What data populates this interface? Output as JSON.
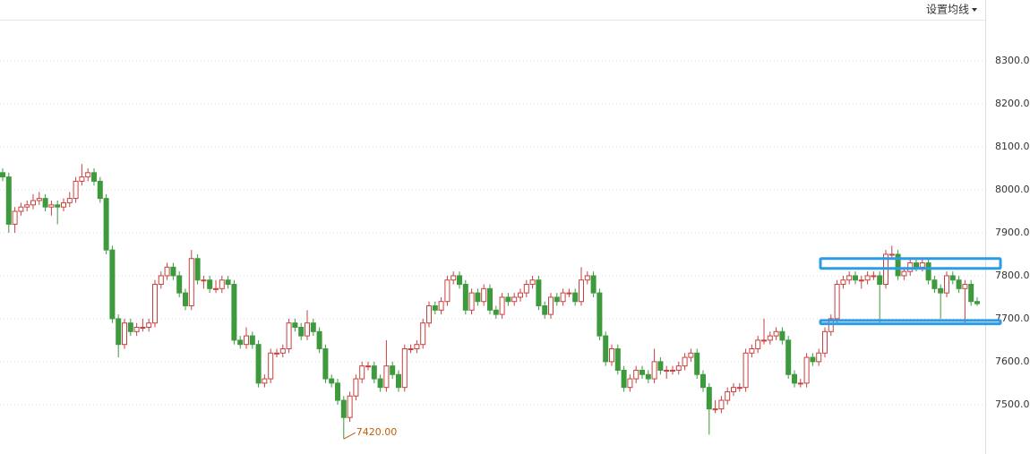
{
  "header_button": "设置均线",
  "chart_data": {
    "type": "candlestick",
    "ylim": [
      7385,
      8442
    ],
    "yticks": [
      {
        "value": 7500,
        "label": "7500.00"
      },
      {
        "value": 7600,
        "label": "7600.00"
      },
      {
        "value": 7700,
        "label": "7700.00"
      },
      {
        "value": 7800,
        "label": "7800.00"
      },
      {
        "value": 7900,
        "label": "7900.00"
      },
      {
        "value": 8000,
        "label": "8000.00"
      },
      {
        "value": 8100,
        "label": "8100.00"
      },
      {
        "value": 8200,
        "label": "8200.00"
      },
      {
        "value": 8300,
        "label": "8300.00"
      }
    ],
    "grid": true,
    "up_color": "#c9413f",
    "down_color": "#3d9a3d",
    "min_label": {
      "value": 7420,
      "label": "7420.00"
    },
    "zones": [
      {
        "low": 7817,
        "high": 7840
      },
      {
        "low": 7688,
        "high": 7696
      }
    ],
    "zone_color": "#2e9be6",
    "candles": [
      [
        8040,
        8050,
        8020,
        8030
      ],
      [
        8030,
        8040,
        7900,
        7920
      ],
      [
        7920,
        7960,
        7900,
        7950
      ],
      [
        7950,
        7970,
        7940,
        7960
      ],
      [
        7960,
        7975,
        7950,
        7965
      ],
      [
        7965,
        7990,
        7955,
        7975
      ],
      [
        7975,
        7995,
        7965,
        7980
      ],
      [
        7980,
        7990,
        7950,
        7960
      ],
      [
        7960,
        7975,
        7940,
        7965
      ],
      [
        7965,
        7975,
        7920,
        7960
      ],
      [
        7960,
        7980,
        7950,
        7970
      ],
      [
        7970,
        7995,
        7960,
        7980
      ],
      [
        7980,
        8030,
        7970,
        8020
      ],
      [
        8020,
        8060,
        8010,
        8030
      ],
      [
        8030,
        8050,
        8020,
        8040
      ],
      [
        8040,
        8050,
        8010,
        8020
      ],
      [
        8020,
        8030,
        7970,
        7980
      ],
      [
        7980,
        7990,
        7850,
        7860
      ],
      [
        7860,
        7870,
        7690,
        7700
      ],
      [
        7700,
        7710,
        7610,
        7640
      ],
      [
        7640,
        7700,
        7630,
        7690
      ],
      [
        7690,
        7700,
        7660,
        7670
      ],
      [
        7670,
        7690,
        7660,
        7680
      ],
      [
        7680,
        7700,
        7670,
        7680
      ],
      [
        7680,
        7700,
        7670,
        7690
      ],
      [
        7690,
        7790,
        7680,
        7780
      ],
      [
        7780,
        7810,
        7770,
        7800
      ],
      [
        7800,
        7830,
        7790,
        7820
      ],
      [
        7820,
        7830,
        7790,
        7800
      ],
      [
        7800,
        7810,
        7750,
        7760
      ],
      [
        7760,
        7770,
        7720,
        7730
      ],
      [
        7730,
        7860,
        7720,
        7840
      ],
      [
        7840,
        7850,
        7780,
        7790
      ],
      [
        7790,
        7800,
        7770,
        7790
      ],
      [
        7790,
        7800,
        7760,
        7770
      ],
      [
        7770,
        7790,
        7760,
        7770
      ],
      [
        7770,
        7800,
        7760,
        7790
      ],
      [
        7790,
        7800,
        7770,
        7780
      ],
      [
        7780,
        7790,
        7640,
        7650
      ],
      [
        7650,
        7660,
        7630,
        7640
      ],
      [
        7640,
        7680,
        7630,
        7660
      ],
      [
        7660,
        7670,
        7630,
        7640
      ],
      [
        7640,
        7650,
        7540,
        7550
      ],
      [
        7550,
        7570,
        7540,
        7560
      ],
      [
        7560,
        7630,
        7550,
        7620
      ],
      [
        7620,
        7630,
        7610,
        7620
      ],
      [
        7620,
        7640,
        7610,
        7630
      ],
      [
        7630,
        7700,
        7620,
        7690
      ],
      [
        7690,
        7700,
        7670,
        7680
      ],
      [
        7680,
        7690,
        7650,
        7660
      ],
      [
        7660,
        7720,
        7650,
        7690
      ],
      [
        7690,
        7700,
        7660,
        7670
      ],
      [
        7670,
        7680,
        7620,
        7630
      ],
      [
        7630,
        7640,
        7550,
        7560
      ],
      [
        7560,
        7570,
        7540,
        7550
      ],
      [
        7550,
        7560,
        7500,
        7510
      ],
      [
        7510,
        7520,
        7420,
        7470
      ],
      [
        7470,
        7530,
        7460,
        7520
      ],
      [
        7520,
        7570,
        7510,
        7560
      ],
      [
        7560,
        7600,
        7550,
        7590
      ],
      [
        7590,
        7600,
        7580,
        7590
      ],
      [
        7590,
        7600,
        7550,
        7560
      ],
      [
        7560,
        7570,
        7530,
        7540
      ],
      [
        7540,
        7650,
        7530,
        7590
      ],
      [
        7590,
        7600,
        7560,
        7570
      ],
      [
        7570,
        7580,
        7530,
        7540
      ],
      [
        7540,
        7640,
        7530,
        7630
      ],
      [
        7630,
        7640,
        7620,
        7630
      ],
      [
        7630,
        7650,
        7620,
        7640
      ],
      [
        7640,
        7700,
        7630,
        7690
      ],
      [
        7690,
        7740,
        7680,
        7730
      ],
      [
        7730,
        7740,
        7710,
        7720
      ],
      [
        7720,
        7750,
        7710,
        7740
      ],
      [
        7740,
        7800,
        7730,
        7790
      ],
      [
        7790,
        7810,
        7780,
        7800
      ],
      [
        7800,
        7810,
        7770,
        7780
      ],
      [
        7780,
        7790,
        7710,
        7720
      ],
      [
        7720,
        7770,
        7710,
        7760
      ],
      [
        7760,
        7770,
        7730,
        7740
      ],
      [
        7740,
        7780,
        7730,
        7770
      ],
      [
        7770,
        7780,
        7710,
        7720
      ],
      [
        7720,
        7730,
        7700,
        7710
      ],
      [
        7710,
        7760,
        7700,
        7750
      ],
      [
        7750,
        7760,
        7730,
        7740
      ],
      [
        7740,
        7760,
        7730,
        7750
      ],
      [
        7750,
        7770,
        7740,
        7760
      ],
      [
        7760,
        7790,
        7750,
        7780
      ],
      [
        7780,
        7800,
        7770,
        7790
      ],
      [
        7790,
        7800,
        7720,
        7730
      ],
      [
        7730,
        7740,
        7700,
        7710
      ],
      [
        7710,
        7760,
        7700,
        7750
      ],
      [
        7750,
        7760,
        7730,
        7740
      ],
      [
        7740,
        7770,
        7730,
        7760
      ],
      [
        7760,
        7770,
        7750,
        7760
      ],
      [
        7760,
        7770,
        7730,
        7740
      ],
      [
        7740,
        7820,
        7730,
        7790
      ],
      [
        7790,
        7810,
        7780,
        7800
      ],
      [
        7800,
        7810,
        7750,
        7760
      ],
      [
        7760,
        7770,
        7650,
        7660
      ],
      [
        7660,
        7670,
        7590,
        7600
      ],
      [
        7600,
        7640,
        7590,
        7630
      ],
      [
        7630,
        7640,
        7570,
        7580
      ],
      [
        7580,
        7590,
        7530,
        7540
      ],
      [
        7540,
        7570,
        7530,
        7560
      ],
      [
        7560,
        7590,
        7550,
        7580
      ],
      [
        7580,
        7590,
        7560,
        7570
      ],
      [
        7570,
        7580,
        7550,
        7560
      ],
      [
        7560,
        7630,
        7550,
        7600
      ],
      [
        7600,
        7610,
        7570,
        7580
      ],
      [
        7580,
        7590,
        7560,
        7580
      ],
      [
        7580,
        7590,
        7570,
        7580
      ],
      [
        7580,
        7600,
        7570,
        7590
      ],
      [
        7590,
        7620,
        7580,
        7610
      ],
      [
        7610,
        7630,
        7600,
        7620
      ],
      [
        7620,
        7630,
        7560,
        7570
      ],
      [
        7570,
        7580,
        7530,
        7540
      ],
      [
        7540,
        7550,
        7430,
        7490
      ],
      [
        7490,
        7510,
        7480,
        7490
      ],
      [
        7490,
        7520,
        7480,
        7510
      ],
      [
        7510,
        7540,
        7500,
        7530
      ],
      [
        7530,
        7550,
        7520,
        7540
      ],
      [
        7540,
        7550,
        7530,
        7540
      ],
      [
        7540,
        7630,
        7530,
        7620
      ],
      [
        7620,
        7640,
        7610,
        7630
      ],
      [
        7630,
        7660,
        7620,
        7650
      ],
      [
        7650,
        7700,
        7640,
        7650
      ],
      [
        7650,
        7670,
        7640,
        7660
      ],
      [
        7660,
        7680,
        7650,
        7670
      ],
      [
        7670,
        7680,
        7640,
        7650
      ],
      [
        7650,
        7660,
        7560,
        7570
      ],
      [
        7570,
        7580,
        7540,
        7550
      ],
      [
        7550,
        7560,
        7540,
        7550
      ],
      [
        7550,
        7620,
        7540,
        7610
      ],
      [
        7610,
        7620,
        7590,
        7600
      ],
      [
        7600,
        7630,
        7590,
        7620
      ],
      [
        7620,
        7680,
        7610,
        7670
      ],
      [
        7670,
        7710,
        7660,
        7700
      ],
      [
        7700,
        7790,
        7690,
        7780
      ],
      [
        7780,
        7800,
        7770,
        7790
      ],
      [
        7790,
        7810,
        7780,
        7800
      ],
      [
        7800,
        7810,
        7780,
        7790
      ],
      [
        7790,
        7800,
        7770,
        7790
      ],
      [
        7790,
        7810,
        7780,
        7800
      ],
      [
        7800,
        7810,
        7790,
        7800
      ],
      [
        7800,
        7810,
        7690,
        7780
      ],
      [
        7780,
        7860,
        7770,
        7850
      ],
      [
        7850,
        7870,
        7840,
        7850
      ],
      [
        7850,
        7860,
        7790,
        7800
      ],
      [
        7800,
        7820,
        7790,
        7810
      ],
      [
        7810,
        7840,
        7800,
        7830
      ],
      [
        7830,
        7840,
        7810,
        7820
      ],
      [
        7820,
        7840,
        7810,
        7830
      ],
      [
        7830,
        7840,
        7780,
        7790
      ],
      [
        7790,
        7800,
        7760,
        7770
      ],
      [
        7770,
        7780,
        7700,
        7760
      ],
      [
        7760,
        7810,
        7750,
        7800
      ],
      [
        7800,
        7810,
        7780,
        7790
      ],
      [
        7790,
        7800,
        7760,
        7770
      ],
      [
        7770,
        7790,
        7690,
        7780
      ],
      [
        7780,
        7790,
        7730,
        7740
      ],
      [
        7740,
        7750,
        7730,
        7735
      ]
    ]
  }
}
